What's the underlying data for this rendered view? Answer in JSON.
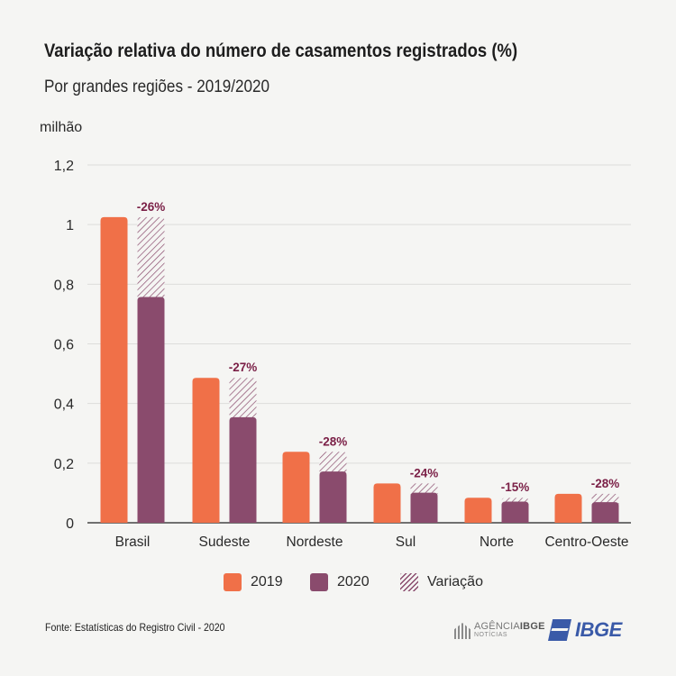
{
  "header": {
    "title": "Variação relativa do número de casamentos registrados (%)",
    "subtitle": "Por grandes regiões - 2019/2020"
  },
  "footer": {
    "source": "Fonte: Estatísticas do Registro Civil - 2020",
    "logo_agencia_1": "AGÊNCIA",
    "logo_agencia_2": "IBGE",
    "logo_agencia_sub": "NOTÍCIAS",
    "logo_ibge": "IBGE"
  },
  "colors": {
    "y2019": "#f07048",
    "y2020": "#8a4b6d",
    "variation": "#8a4b6d",
    "label": "#7a1f46",
    "grid": "#dddddb"
  },
  "chart_data": {
    "type": "bar",
    "ylabel": "milhão",
    "ylim": [
      0,
      1.2
    ],
    "yticks": [
      0,
      0.2,
      0.4,
      0.6,
      0.8,
      1,
      1.2
    ],
    "ytick_labels": [
      "0",
      "0,2",
      "0,4",
      "0,6",
      "0,8",
      "1",
      "1,2"
    ],
    "categories": [
      "Brasil",
      "Sudeste",
      "Nordeste",
      "Sul",
      "Norte",
      "Centro-Oeste"
    ],
    "series": [
      {
        "name": "2019",
        "values": [
          1.025,
          0.486,
          0.238,
          0.132,
          0.084,
          0.097
        ]
      },
      {
        "name": "2020",
        "values": [
          0.757,
          0.354,
          0.172,
          0.101,
          0.071,
          0.069
        ]
      }
    ],
    "variation_name": "Variação",
    "variation_labels": [
      "-26%",
      "-27%",
      "-28%",
      "-24%",
      "-15%",
      "-28%"
    ],
    "legend": "bottom",
    "grid": true
  }
}
